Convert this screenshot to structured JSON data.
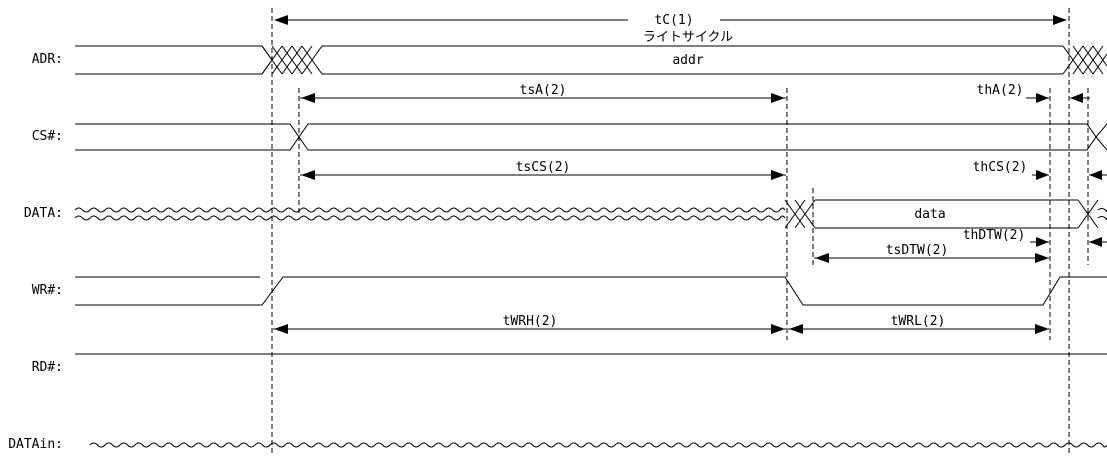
{
  "signals": {
    "adr": "ADR:",
    "cs": "CS#:",
    "data": "DATA:",
    "wr": "WR#:",
    "rd": "RD#:",
    "datain": "DATAin:"
  },
  "bus_values": {
    "addr": "addr",
    "data": "data"
  },
  "timing": {
    "tc": "tC(1)",
    "cycle": "ライトサイクル",
    "tsa": "tsA(2)",
    "tha": "thA(2)",
    "tscs": "tsCS(2)",
    "thcs": "thCS(2)",
    "tsdtw": "tsDTW(2)",
    "thdtw": "thDTW(2)",
    "twrh": "tWRH(2)",
    "twrl": "tWRL(2)"
  }
}
